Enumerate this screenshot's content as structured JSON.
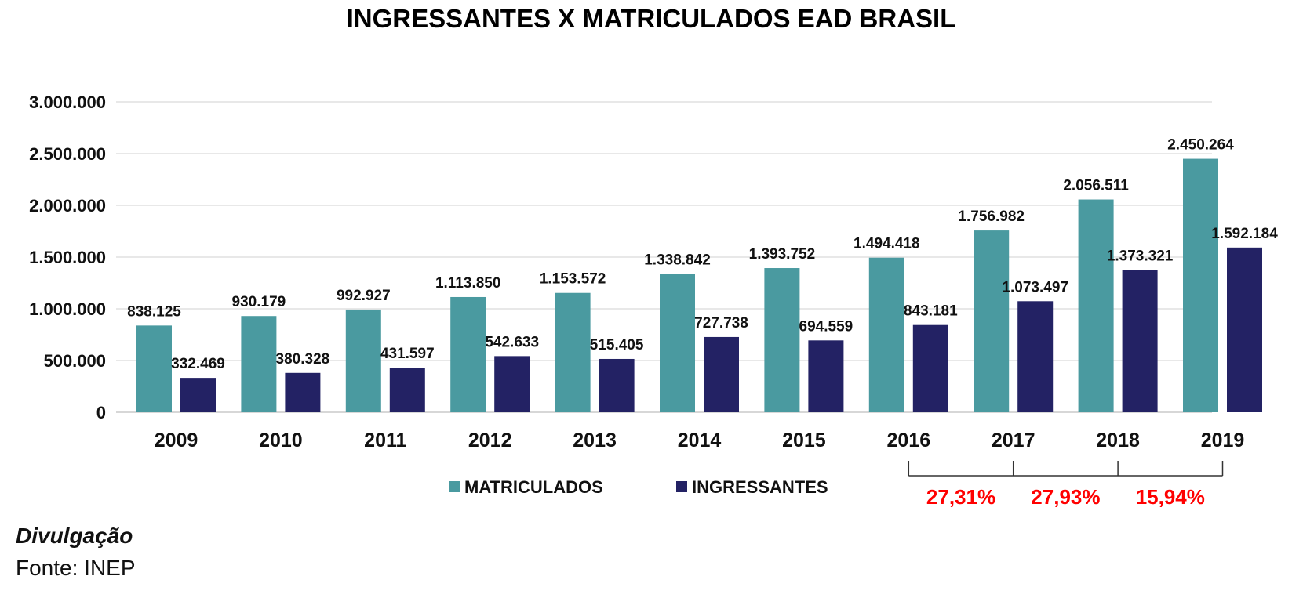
{
  "chart_data": {
    "type": "bar",
    "title": "INGRESSANTES X MATRICULADOS EAD BRASIL",
    "categories": [
      "2009",
      "2010",
      "2011",
      "2012",
      "2013",
      "2014",
      "2015",
      "2016",
      "2017",
      "2018",
      "2019"
    ],
    "series": [
      {
        "name": "MATRICULADOS",
        "color": "#4a9aa0",
        "values": [
          838125,
          930179,
          992927,
          1113850,
          1153572,
          1338842,
          1393752,
          1494418,
          1756982,
          2056511,
          2450264
        ],
        "labels": [
          "838.125",
          "930.179",
          "992.927",
          "1.113.850",
          "1.153.572",
          "1.338.842",
          "1.393.752",
          "1.494.418",
          "1.756.982",
          "2.056.511",
          "2.450.264"
        ]
      },
      {
        "name": "INGRESSANTES",
        "color": "#232264",
        "values": [
          332469,
          380328,
          431597,
          542633,
          515405,
          727738,
          694559,
          843181,
          1073497,
          1373321,
          1592184
        ],
        "labels": [
          "332.469",
          "380.328",
          "431.597",
          "542.633",
          "515.405",
          "727.738",
          "694.559",
          "843.181",
          "1.073.497",
          "1.373.321",
          "1.592.184"
        ]
      }
    ],
    "ylim": [
      0,
      3000000
    ],
    "yticks": [
      0,
      500000,
      1000000,
      1500000,
      2000000,
      2500000,
      3000000
    ],
    "ytick_labels": [
      "0",
      "500.000",
      "1.000.000",
      "1.500.000",
      "2.000.000",
      "2.500.000",
      "3.000.000"
    ],
    "grid": true,
    "legend_position": "bottom",
    "annotations": [
      {
        "text": "27,31%",
        "from": "2016",
        "to": "2017",
        "color": "#ff0000"
      },
      {
        "text": "27,93%",
        "from": "2017",
        "to": "2018",
        "color": "#ff0000"
      },
      {
        "text": "15,94%",
        "from": "2018",
        "to": "2019",
        "color": "#ff0000"
      }
    ]
  },
  "credit": "Divulgação",
  "source": "Fonte: INEP"
}
